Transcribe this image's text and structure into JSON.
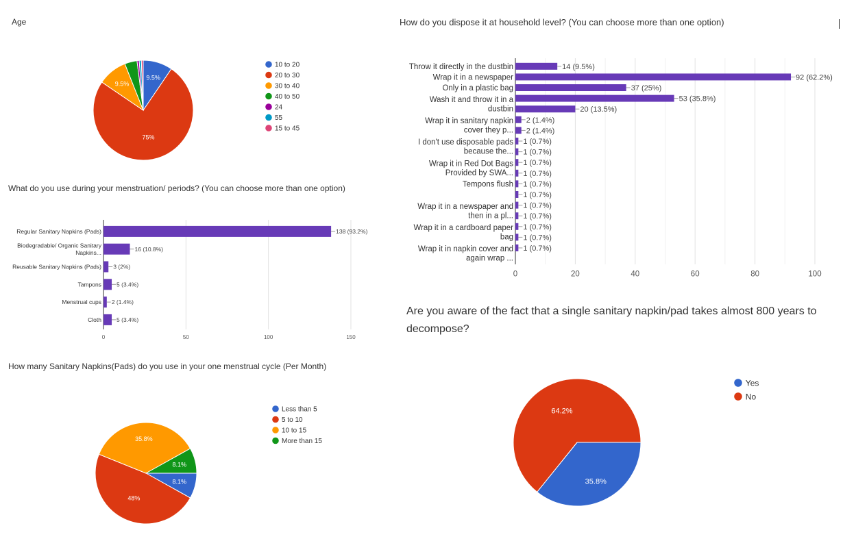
{
  "chart_data": [
    {
      "type": "pie",
      "title": "Age",
      "categories": [
        "10 to 20",
        "20 to 30",
        "30 to 40",
        "40 to 50",
        "24",
        "55",
        "15 to 45"
      ],
      "values": [
        9.5,
        75,
        9.5,
        4,
        0.7,
        0.7,
        0.6
      ],
      "slice_labels": [
        "9.5%",
        "75%",
        "9.5%",
        "",
        "",
        "",
        ""
      ],
      "colors": [
        "#3366cc",
        "#dc3912",
        "#ff9900",
        "#109618",
        "#990099",
        "#0099c6",
        "#dd4477"
      ],
      "legend": "right"
    },
    {
      "type": "bar",
      "orientation": "horizontal",
      "title": "What do you use during your menstruation/ periods? (You can choose more than one option)",
      "categories": [
        "Regular Sanitary Napkins (Pads)",
        "Biodegradable/ Organic Sanitary Napkins...",
        "Reusable Sanitary Napkins (Pads)",
        "Tampons",
        "Menstrual cups",
        "Cloth"
      ],
      "values": [
        138,
        16,
        3,
        5,
        2,
        5
      ],
      "data_labels": [
        "138 (93.2%)",
        "16 (10.8%)",
        "3 (2%)",
        "5 (3.4%)",
        "2 (1.4%)",
        "5 (3.4%)"
      ],
      "xlim": [
        0,
        150
      ],
      "ticks": [
        "0",
        "50",
        "100",
        "150"
      ],
      "color": "#673ab7"
    },
    {
      "type": "pie",
      "title": "How many Sanitary Napkins(Pads) do you use in your one menstrual cycle (Per Month)",
      "categories": [
        "Less than 5",
        "5 to 10",
        "10 to 15",
        "More than 15"
      ],
      "values": [
        8.1,
        48,
        35.8,
        8.1
      ],
      "slice_labels": [
        "8.1%",
        "48%",
        "35.8%",
        "8.1%"
      ],
      "colors": [
        "#3366cc",
        "#dc3912",
        "#ff9900",
        "#109618"
      ],
      "legend": "right"
    },
    {
      "type": "bar",
      "orientation": "horizontal",
      "title": "How do you dispose it at household level? (You can choose more than one option)",
      "categories": [
        "Throw it directly in the dustbin",
        "Wrap it in a newspaper",
        "Only in a plastic bag",
        "Wash it and throw it in a dustbin",
        "",
        "Wrap it in sanitary napkin cover they p...",
        "",
        "I don't use disposable pads because the...",
        "",
        "Wrap it in Red Dot Bags Provided by SWA...",
        "",
        "Tempons flush",
        "",
        "Wrap it in a newspaper and then in a pl...",
        "",
        "Wrap it in a cardboard paper bag",
        "",
        "Wrap it in napkin cover and again wrap ..."
      ],
      "values": [
        14,
        92,
        37,
        53,
        20,
        2,
        2,
        1,
        1,
        1,
        1,
        1,
        1,
        1,
        1,
        1,
        1,
        1
      ],
      "data_labels": [
        "14 (9.5%)",
        "92 (62.2%)",
        "37 (25%)",
        "53 (35.8%)",
        "20 (13.5%)",
        "2 (1.4%)",
        "2 (1.4%)",
        "1 (0.7%)",
        "1 (0.7%)",
        "1 (0.7%)",
        "1 (0.7%)",
        "1 (0.7%)",
        "1 (0.7%)",
        "1 (0.7%)",
        "1 (0.7%)",
        "1 (0.7%)",
        "1 (0.7%)",
        "1 (0.7%)"
      ],
      "xlim": [
        0,
        100
      ],
      "ticks": [
        "0",
        "20",
        "40",
        "60",
        "80",
        "100"
      ],
      "color": "#673ab7"
    },
    {
      "type": "pie",
      "title": "Are you aware of the fact that a single sanitary napkin/pad takes almost 800 years to decompose?",
      "categories": [
        "Yes",
        "No"
      ],
      "values": [
        35.8,
        64.2
      ],
      "slice_labels": [
        "35.8%",
        "64.2%"
      ],
      "colors": [
        "#3366cc",
        "#dc3912"
      ],
      "legend": "right"
    }
  ]
}
